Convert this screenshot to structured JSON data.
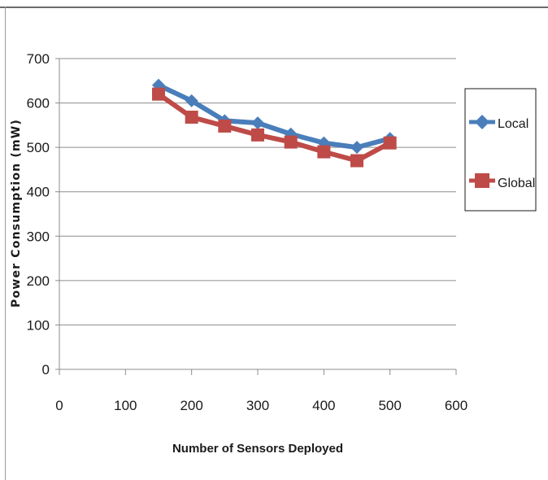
{
  "chart_data": {
    "type": "line",
    "title": "",
    "xlabel": "Number of Sensors Deployed",
    "ylabel": "Power Consumption (mW)",
    "xlim": [
      0,
      600
    ],
    "ylim": [
      0,
      700
    ],
    "xticks": [
      0,
      100,
      200,
      300,
      400,
      500,
      600
    ],
    "yticks": [
      0,
      100,
      200,
      300,
      400,
      500,
      600,
      700
    ],
    "grid": "horizontal",
    "legend_position": "right",
    "x": [
      150,
      200,
      250,
      300,
      350,
      400,
      450,
      500
    ],
    "series": [
      {
        "name": "Local",
        "color": "#4a7ebb",
        "marker": "diamond",
        "values": [
          640,
          605,
          560,
          555,
          530,
          510,
          500,
          520
        ]
      },
      {
        "name": "Global",
        "color": "#be4b48",
        "marker": "square",
        "values": [
          620,
          568,
          548,
          528,
          512,
          490,
          470,
          510
        ]
      }
    ]
  }
}
